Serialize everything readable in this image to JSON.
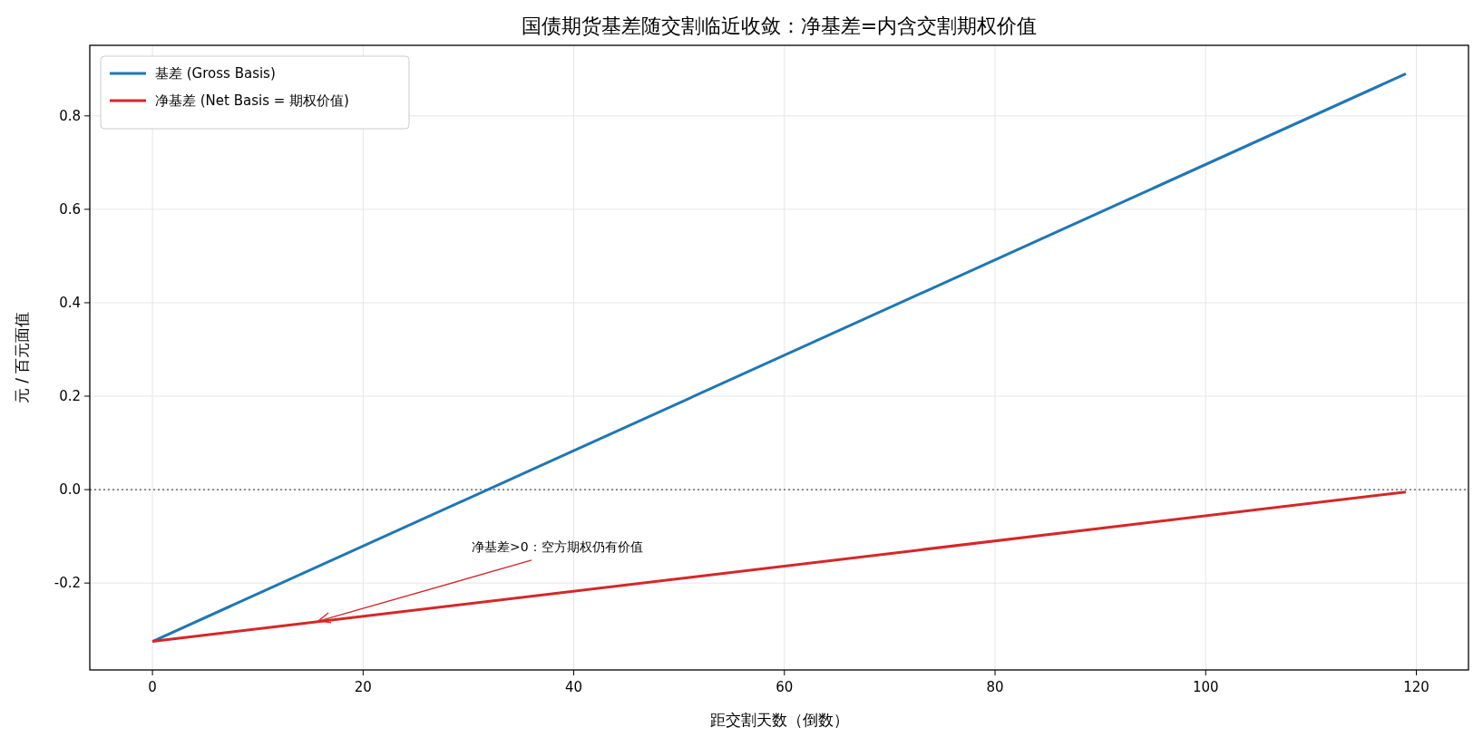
{
  "chart_data": {
    "type": "line",
    "title": "国债期货基差随交割临近收敛：净基差=内含交割期权价值",
    "xlabel": "距交割天数（倒数）",
    "ylabel": "元 / 百元面值",
    "x": [
      0,
      119
    ],
    "series": [
      {
        "name": "基差 (Gross Basis)",
        "color": "#1f77b4",
        "values": [
          -0.325,
          0.89
        ]
      },
      {
        "name": "净基差 (Net Basis = 期权价值)",
        "color": "#d62728",
        "values": [
          -0.325,
          -0.005
        ]
      }
    ],
    "xlim": [
      -5.95,
      124.95
    ],
    "ylim": [
      -0.386,
      0.951
    ],
    "xticks": [
      0,
      20,
      40,
      60,
      80,
      100,
      120
    ],
    "yticks": [
      -0.2,
      {
        "value": 0,
        "label": "0.0"
      },
      0.2,
      0.4,
      0.6,
      0.8
    ],
    "ref_lines": [
      {
        "axis": "y",
        "value": 0,
        "color": "#555555",
        "line_style": "dotted"
      }
    ],
    "annotations": [
      {
        "text": "净基差>0：空方期权仍有价值",
        "x": 15.5,
        "y": -0.283
      }
    ],
    "grid": true,
    "legend": "top left",
    "line_style": "solid",
    "marker": "none"
  }
}
